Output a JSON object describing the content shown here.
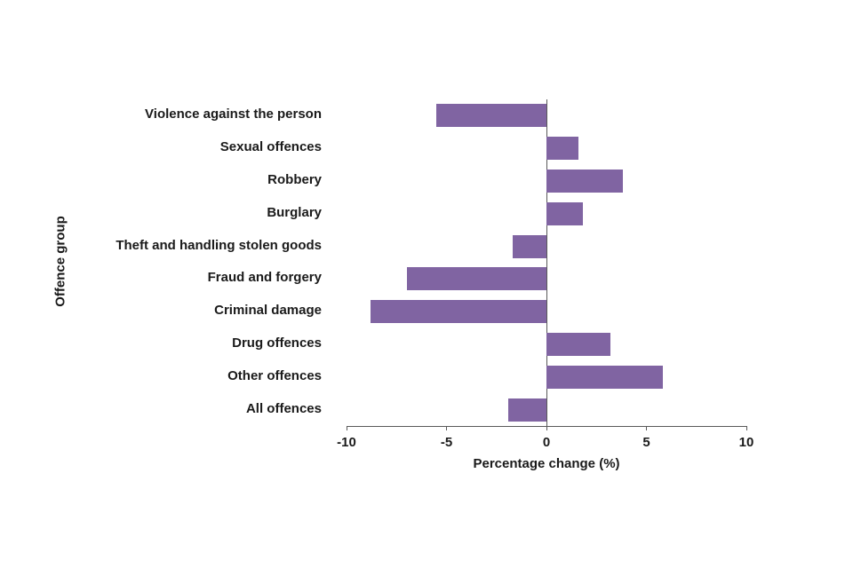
{
  "chart_data": {
    "type": "bar",
    "orientation": "horizontal",
    "title": "",
    "xlabel": "Percentage change (%)",
    "ylabel": "Offence group",
    "categories": [
      "Violence against the person",
      "Sexual offences",
      "Robbery",
      "Burglary",
      "Theft and handling stolen goods",
      "Fraud and forgery",
      "Criminal damage",
      "Drug offences",
      "Other offences",
      "All offences"
    ],
    "values": [
      -5.5,
      1.6,
      3.8,
      1.8,
      -1.7,
      -7.0,
      -8.8,
      3.2,
      5.8,
      -1.9
    ],
    "xlim": [
      -10,
      10
    ],
    "xticks": [
      -10,
      -5,
      0,
      5,
      10
    ],
    "grid": false,
    "legend": "none",
    "bar_color": "#8064A2",
    "axis_color": "#595959",
    "text_color": "#1a1a1a"
  }
}
